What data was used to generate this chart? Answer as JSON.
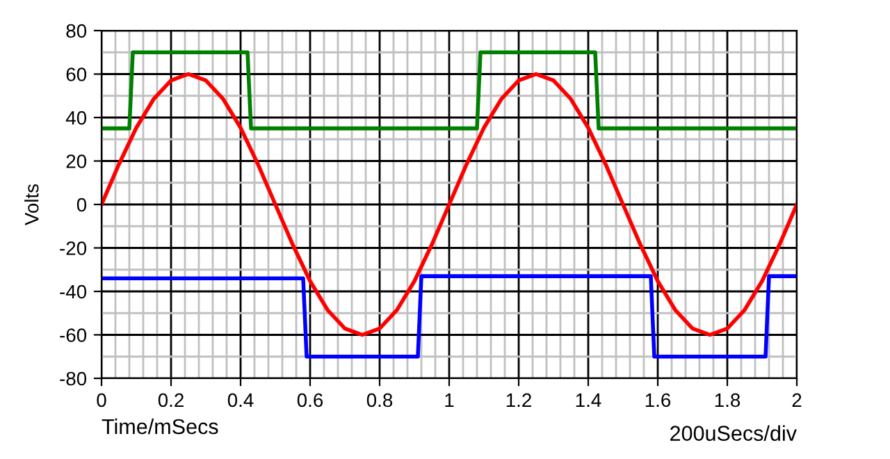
{
  "chart_data": {
    "type": "line",
    "xlabel": "Time/mSecs",
    "ylabel": "Volts",
    "annotations": [
      "200uSecs/div"
    ],
    "xlim": [
      0,
      2
    ],
    "ylim": [
      -80,
      80
    ],
    "xticks": [
      0,
      0.2,
      0.4,
      0.6,
      0.8,
      1,
      1.2,
      1.4,
      1.6,
      1.8,
      2
    ],
    "yticks": [
      -80,
      -60,
      -40,
      -20,
      0,
      20,
      40,
      60,
      80
    ],
    "grid": true,
    "marker": "none",
    "line_style": "solid",
    "series": [
      {
        "color": "#ff0000",
        "x": [
          0,
          0.05,
          0.1,
          0.15,
          0.2,
          0.25,
          0.3,
          0.35,
          0.4,
          0.45,
          0.5,
          0.55,
          0.6,
          0.65,
          0.7,
          0.75,
          0.8,
          0.85,
          0.9,
          0.95,
          1,
          1.05,
          1.1,
          1.15,
          1.2,
          1.25,
          1.3,
          1.35,
          1.4,
          1.45,
          1.5,
          1.55,
          1.6,
          1.65,
          1.7,
          1.75,
          1.8,
          1.85,
          1.9,
          1.95,
          2
        ],
        "values": [
          0,
          18.5,
          35.3,
          48.5,
          57.1,
          60,
          57.1,
          48.5,
          35.3,
          18.5,
          0,
          -18.5,
          -35.3,
          -48.5,
          -57.1,
          -60,
          -57.1,
          -48.5,
          -35.3,
          -18.5,
          0,
          18.5,
          35.3,
          48.5,
          57.1,
          60,
          57.1,
          48.5,
          35.3,
          18.5,
          0,
          -18.5,
          -35.3,
          -48.5,
          -57.1,
          -60,
          -57.1,
          -48.5,
          -35.3,
          -18.5,
          0
        ]
      },
      {
        "color": "#008000",
        "x": [
          0,
          0.08,
          0.09,
          0.42,
          0.43,
          1.08,
          1.09,
          1.42,
          1.43,
          2
        ],
        "values": [
          35,
          35,
          70,
          70,
          35,
          35,
          70,
          70,
          35,
          35
        ]
      },
      {
        "color": "#0000ff",
        "x": [
          0,
          0.58,
          0.59,
          0.91,
          0.92,
          1.58,
          1.59,
          1.91,
          1.92,
          2
        ],
        "values": [
          -34,
          -34,
          -70,
          -70,
          -33,
          -33,
          -70,
          -70,
          -33,
          -33
        ]
      }
    ]
  }
}
